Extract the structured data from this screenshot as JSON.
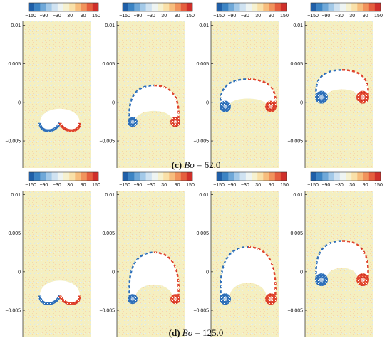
{
  "colorbar": {
    "ticks": [
      "−150",
      "−90",
      "−30",
      "30",
      "90",
      "150"
    ],
    "colors": [
      "#1f5fa8",
      "#3c84c4",
      "#6fa8d8",
      "#a3c9e8",
      "#cfe2f1",
      "#eef4f2",
      "#f6f1cf",
      "#f9e0a8",
      "#f7bd7d",
      "#f1935c",
      "#e55e3e",
      "#cf2f2a"
    ]
  },
  "yaxis": {
    "ticks": [
      "0.01",
      "0.005",
      "0",
      "−0.005"
    ],
    "values": [
      0.01,
      0.005,
      0,
      -0.005
    ]
  },
  "background_color": "#f5efc0",
  "rows": [
    {
      "caption_label": "(c)",
      "caption_var": "Bo",
      "caption_eq": " = 62.0",
      "panels": [
        {
          "bubble_top": -0.0002,
          "bubble_bottom": -0.004,
          "stage": 0
        },
        {
          "bubble_top": 0.0022,
          "bubble_bottom": -0.003,
          "stage": 1
        },
        {
          "bubble_top": 0.003,
          "bubble_bottom": -0.001,
          "stage": 2
        },
        {
          "bubble_top": 0.0042,
          "bubble_bottom": 0.0002,
          "stage": 3
        }
      ]
    },
    {
      "caption_label": "(d)",
      "caption_var": "Bo",
      "caption_eq": " = 125.0",
      "panels": [
        {
          "bubble_top": -0.0005,
          "bubble_bottom": -0.0045,
          "stage": 0
        },
        {
          "bubble_top": 0.0025,
          "bubble_bottom": -0.004,
          "stage": 1
        },
        {
          "bubble_top": 0.0032,
          "bubble_bottom": -0.004,
          "stage": 2
        },
        {
          "bubble_top": 0.004,
          "bubble_bottom": -0.0015,
          "stage": 3
        }
      ]
    }
  ]
}
